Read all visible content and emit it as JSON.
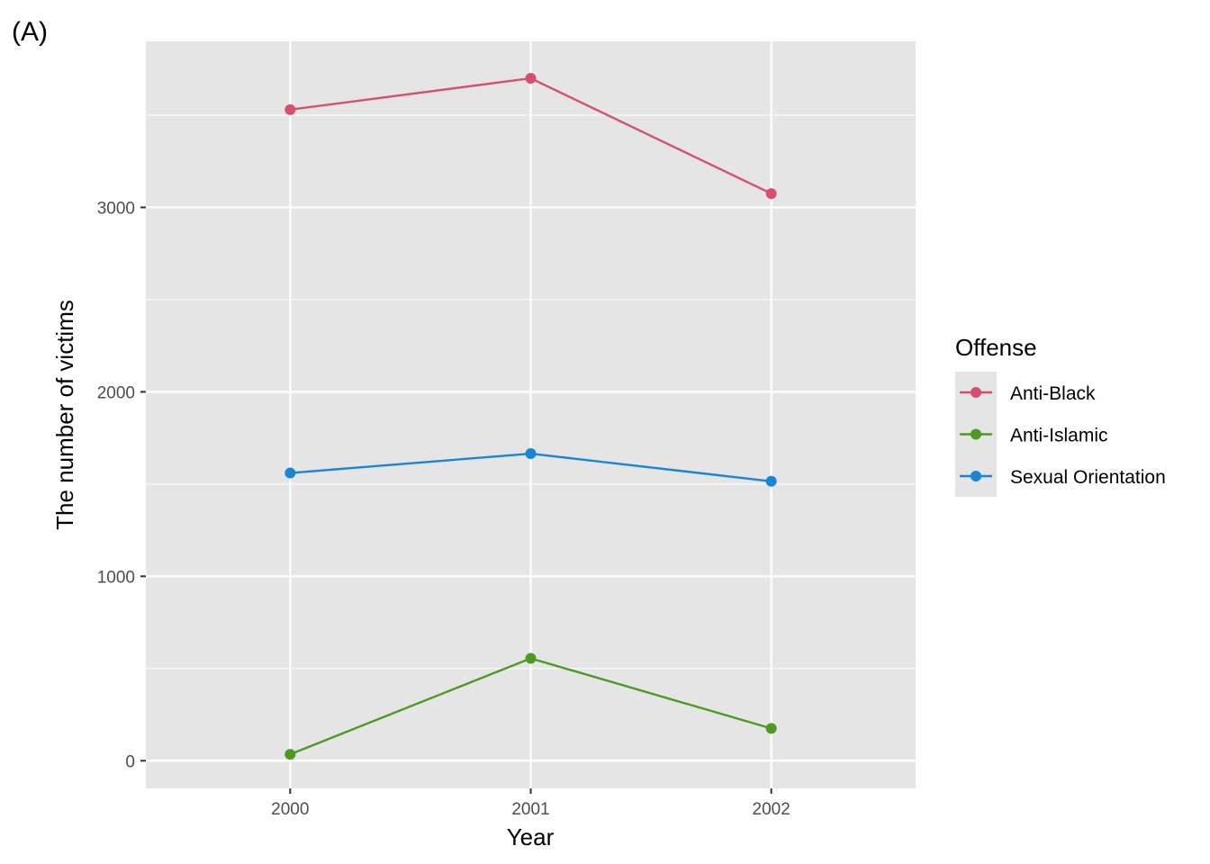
{
  "chart_data": {
    "type": "line",
    "panel_tag": "(A)",
    "title": "",
    "xlabel": "Year",
    "ylabel": "The number of victims",
    "x": [
      "2000",
      "2001",
      "2002"
    ],
    "xlim": [
      1999.4,
      2002.6
    ],
    "ylim": [
      -150,
      3900
    ],
    "y_ticks": [
      0,
      1000,
      2000,
      3000
    ],
    "y_tick_labels": [
      "0",
      "1000",
      "2000",
      "3000"
    ],
    "grid": true,
    "legend": {
      "title": "Offense",
      "position": "right"
    },
    "series": [
      {
        "name": "Anti-Black",
        "color": "#D6506E",
        "values": [
          3530,
          3700,
          3075
        ]
      },
      {
        "name": "Anti-Islamic",
        "color": "#4D9A21",
        "values": [
          35,
          555,
          175
        ]
      },
      {
        "name": "Sexual Orientation",
        "color": "#1A85D5",
        "values": [
          1560,
          1665,
          1515
        ]
      }
    ],
    "panel_background": "#E5E5E5",
    "grid_color": "#FFFFFF"
  }
}
